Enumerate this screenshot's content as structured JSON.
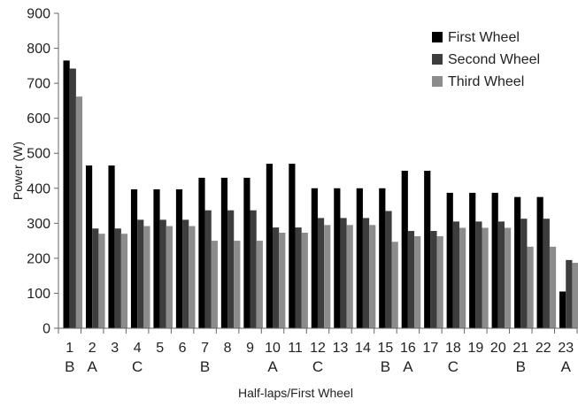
{
  "chart_data": {
    "type": "bar",
    "title": "",
    "xlabel": "Half-laps/First Wheel",
    "ylabel": "Power (W)",
    "ylim": [
      0,
      900
    ],
    "yticks": [
      0,
      100,
      200,
      300,
      400,
      500,
      600,
      700,
      800,
      900
    ],
    "grid": false,
    "legend_position": "top-right",
    "categories": [
      "1",
      "2",
      "3",
      "4",
      "5",
      "6",
      "7",
      "8",
      "9",
      "10",
      "11",
      "12",
      "13",
      "14",
      "15",
      "16",
      "17",
      "18",
      "19",
      "20",
      "21",
      "22",
      "23"
    ],
    "group_labels": [
      "B",
      "A",
      "",
      "C",
      "",
      "",
      "B",
      "",
      "",
      "A",
      "",
      "C",
      "",
      "",
      "B",
      "A",
      "",
      "C",
      "",
      "",
      "B",
      "",
      "A"
    ],
    "series": [
      {
        "name": "First Wheel",
        "color": "#000000",
        "values": [
          765,
          465,
          465,
          397,
          397,
          397,
          430,
          430,
          430,
          470,
          470,
          400,
          400,
          400,
          400,
          450,
          450,
          387,
          387,
          387,
          375,
          375,
          105
        ]
      },
      {
        "name": "Second Wheel",
        "color": "#3d3d3d",
        "values": [
          742,
          285,
          285,
          310,
          310,
          310,
          337,
          337,
          337,
          288,
          288,
          315,
          315,
          315,
          335,
          278,
          278,
          305,
          305,
          305,
          313,
          313,
          195
        ]
      },
      {
        "name": "Third Wheel",
        "color": "#8c8c8c",
        "values": [
          662,
          270,
          270,
          292,
          292,
          292,
          250,
          250,
          250,
          273,
          273,
          295,
          295,
          295,
          247,
          263,
          263,
          287,
          287,
          287,
          233,
          233,
          187
        ]
      }
    ]
  }
}
